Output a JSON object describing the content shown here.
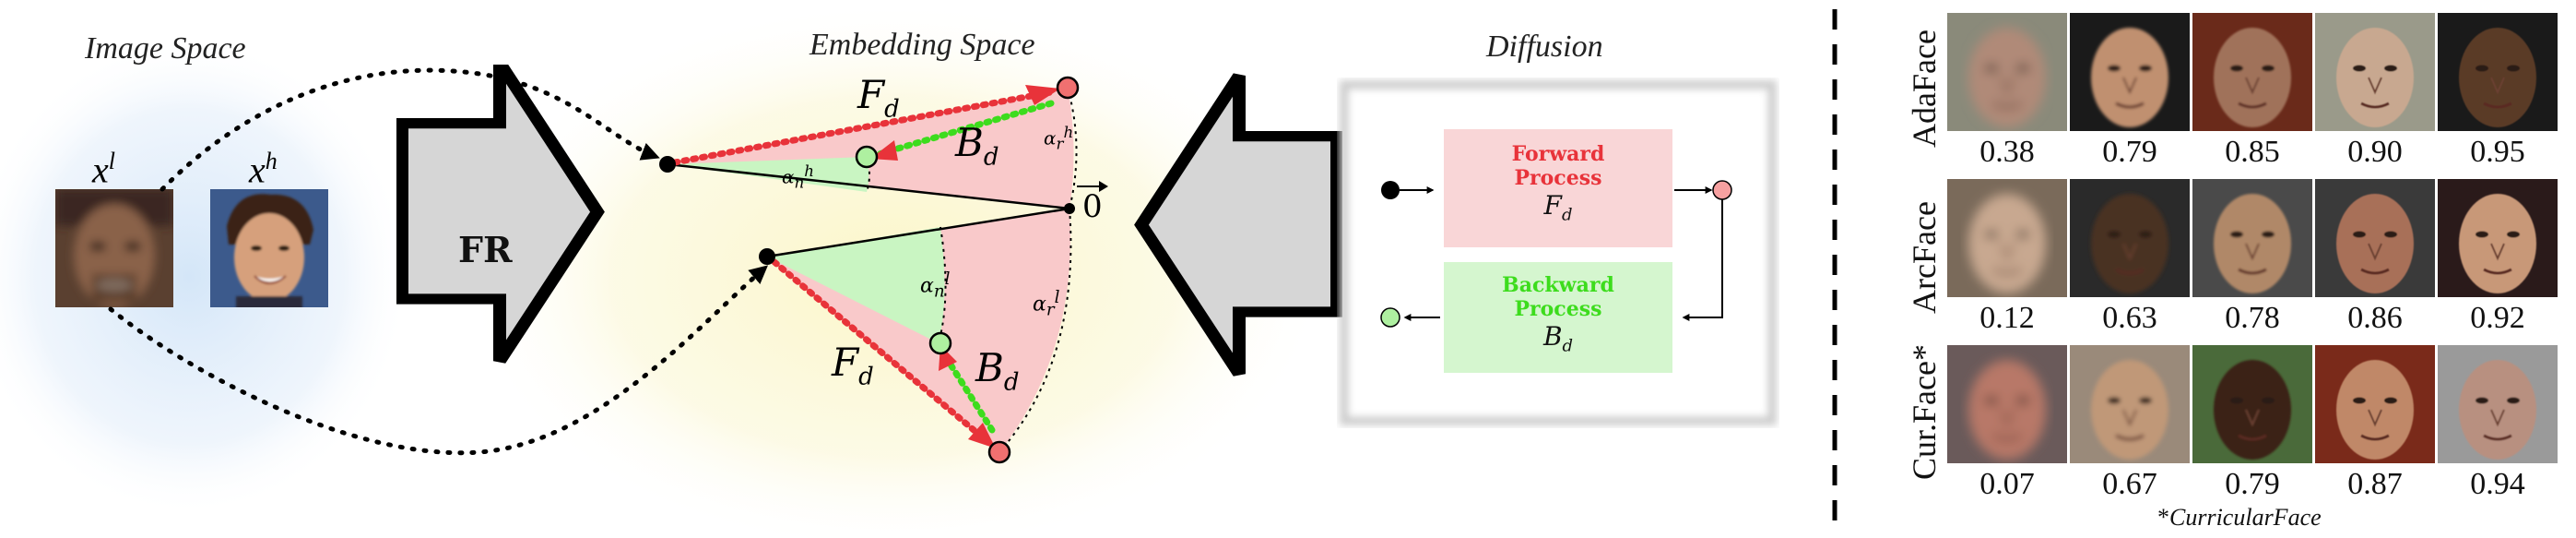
{
  "figure": {
    "image_space": {
      "title": "Image Space",
      "low_label": "x",
      "low_sup": "l",
      "high_label": "x",
      "high_sup": "h"
    },
    "fr_block": {
      "label": "FR"
    },
    "embedding_space": {
      "title": "Embedding Space",
      "forward_symbol": "F",
      "backward_symbol": "B",
      "subscript": "d",
      "alpha": "α",
      "alpha_n": "n",
      "alpha_r": "r",
      "sup_h": "h",
      "sup_l": "l",
      "origin_label": "0"
    },
    "diffusion": {
      "title": "Diffusion",
      "forward_line1": "Forward",
      "forward_line2": "Process",
      "backward_line1": "Backward",
      "backward_line2": "Process",
      "forward_symbol": "F",
      "backward_symbol": "B",
      "subscript": "d",
      "forward_color": "#e8333a",
      "backward_color": "#3ddc1d"
    },
    "grid": {
      "rows": [
        {
          "label": "AdaFace",
          "scores": [
            "0.38",
            "0.79",
            "0.85",
            "0.90",
            "0.95"
          ]
        },
        {
          "label": "ArcFace",
          "scores": [
            "0.12",
            "0.63",
            "0.78",
            "0.86",
            "0.92"
          ]
        },
        {
          "label": "Cur.Face*",
          "scores": [
            "0.07",
            "0.67",
            "0.79",
            "0.87",
            "0.94"
          ]
        }
      ],
      "footnote_star": "*",
      "footnote_text": "CurricularFace"
    },
    "colors": {
      "forward": "#e8333a",
      "backward": "#3ddc1d",
      "pink_fill": "#f9c9ca",
      "green_fill": "#c9f5c2"
    }
  }
}
